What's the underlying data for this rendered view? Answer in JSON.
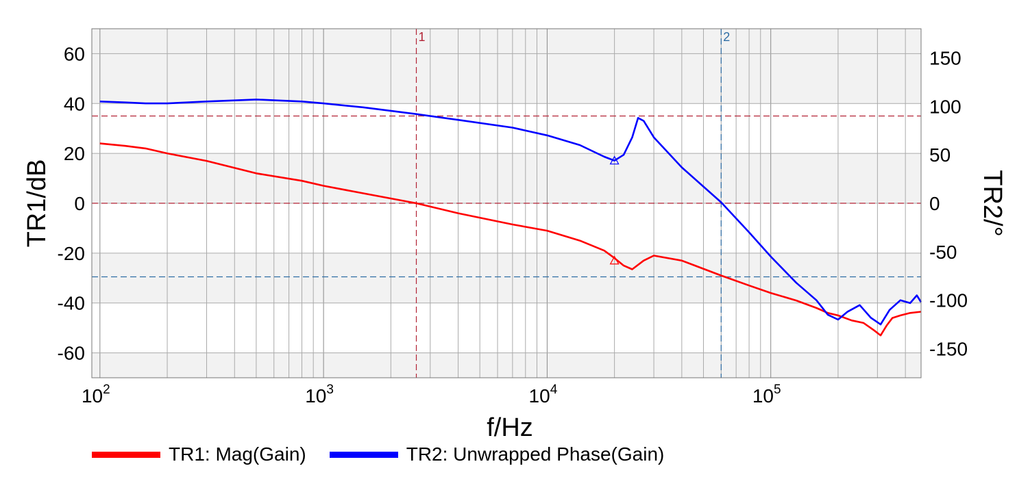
{
  "chart_data": {
    "type": "line",
    "xlabel": "f/Hz",
    "ylabel_left": "TR1/dB",
    "ylabel_right": "TR2/°",
    "x_scale": "log",
    "xlim": [
      92,
      470000
    ],
    "ylim_left": [
      -70,
      70
    ],
    "ylim_right": [
      -180,
      180
    ],
    "x_ticks": [
      {
        "base": "10",
        "exp": "2",
        "value": 100
      },
      {
        "base": "10",
        "exp": "3",
        "value": 1000
      },
      {
        "base": "10",
        "exp": "4",
        "value": 10000
      },
      {
        "base": "10",
        "exp": "5",
        "value": 100000
      }
    ],
    "y_ticks_left": [
      "60",
      "40",
      "20",
      "0",
      "-20",
      "-40",
      "-60"
    ],
    "y_ticks_right": [
      "150",
      "100",
      "50",
      "0",
      "-50",
      "-100",
      "-150"
    ],
    "grid": true,
    "legend_position": "bottom-left",
    "colors": {
      "TR1": "#ff0000",
      "TR2": "#0000ff",
      "marker1": "#b22234",
      "marker2": "#2e6da4",
      "band": "#f2f2f2",
      "grid": "#aaaaaa"
    },
    "series": [
      {
        "name": "TR1: Mag(Gain)",
        "axis": "left",
        "color": "#ff0000",
        "x": [
          100,
          130,
          160,
          200,
          300,
          500,
          800,
          1000,
          1500,
          2600,
          4000,
          7000,
          10000,
          14000,
          18000,
          20000,
          22000,
          24000,
          27000,
          30000,
          40000,
          60000,
          80000,
          100000,
          130000,
          160000,
          180000,
          200000,
          230000,
          260000,
          290000,
          310000,
          330000,
          350000,
          380000,
          420000,
          470000
        ],
        "y": [
          24,
          23,
          22,
          20,
          17,
          12,
          9,
          7,
          4,
          0,
          -4,
          -8.5,
          -11,
          -15,
          -19,
          -22,
          -25,
          -26.5,
          -23,
          -21,
          -23,
          -29,
          -33,
          -36,
          -39,
          -42,
          -44,
          -45,
          -47,
          -48,
          -51,
          -53,
          -49,
          -46,
          -45,
          -44,
          -43.5
        ]
      },
      {
        "name": "TR2: Unwrapped Phase(Gain)",
        "axis": "right",
        "color": "#0000ff",
        "x": [
          100,
          130,
          160,
          200,
          300,
          500,
          800,
          1000,
          1500,
          2600,
          4000,
          7000,
          10000,
          14000,
          18000,
          20000,
          22000,
          24000,
          25500,
          27000,
          30000,
          40000,
          60000,
          80000,
          100000,
          130000,
          160000,
          180000,
          200000,
          220000,
          250000,
          280000,
          310000,
          340000,
          380000,
          420000,
          450000,
          470000
        ],
        "y": [
          105,
          104,
          103,
          103,
          105,
          107,
          105,
          103,
          99,
          92,
          86,
          78,
          70,
          60,
          48,
          44,
          50,
          68,
          88,
          85,
          68,
          37,
          1,
          -30,
          -55,
          -82,
          -100,
          -115,
          -120,
          -112,
          -105,
          -118,
          -125,
          -110,
          -100,
          -103,
          -95,
          -102
        ]
      }
    ],
    "markers": [
      {
        "label": "1",
        "x": 2600,
        "tr1_y": 0,
        "tr2_y": 90
      },
      {
        "label": "2",
        "x": 60000,
        "tr1_y": -29.5,
        "tr2_y": 0
      }
    ],
    "reference_marks": [
      {
        "series": "TR1: Mag(Gain)",
        "x": 20000,
        "y": -23
      },
      {
        "series": "TR2: Unwrapped Phase(Gain)",
        "x": 20000,
        "y": 44
      }
    ]
  }
}
